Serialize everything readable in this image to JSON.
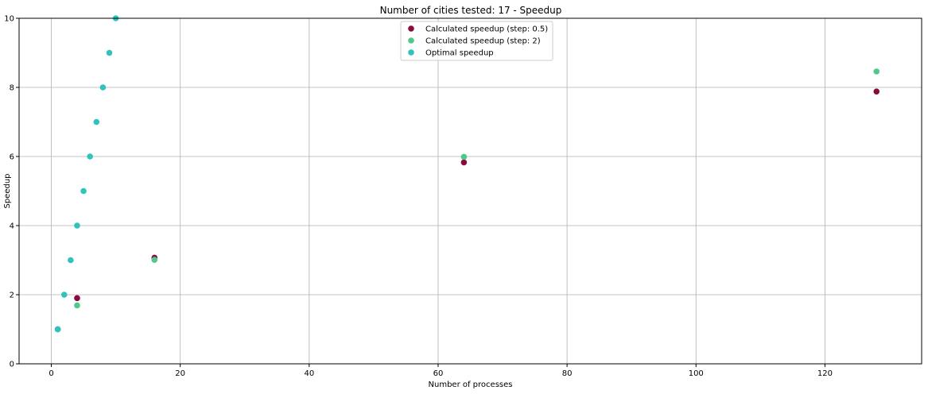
{
  "chart_data": {
    "type": "scatter",
    "title": "Number of cities tested: 17 - Speedup",
    "xlabel": "Number of processes",
    "ylabel": "Speedup",
    "xlim": [
      -5,
      135
    ],
    "ylim": [
      0,
      10
    ],
    "xticks": [
      0,
      20,
      40,
      60,
      80,
      100,
      120
    ],
    "yticks": [
      0,
      2,
      4,
      6,
      8,
      10
    ],
    "grid": true,
    "legend_position": "top-center",
    "series": [
      {
        "name": "Calculated speedup (step: 0.5)",
        "color": "#8b0a3e",
        "x": [
          1,
          4,
          16,
          64,
          128
        ],
        "y": [
          1.0,
          1.9,
          3.07,
          5.83,
          7.88
        ]
      },
      {
        "name": "Calculated speedup (step: 2)",
        "color": "#4fc98a",
        "x": [
          1,
          4,
          16,
          64,
          128
        ],
        "y": [
          1.0,
          1.69,
          3.01,
          5.99,
          8.46
        ]
      },
      {
        "name": "Optimal speedup",
        "color": "#2ec4bc",
        "x": [
          1,
          2,
          3,
          4,
          5,
          6,
          7,
          8,
          9,
          10
        ],
        "y": [
          1,
          2,
          3,
          4,
          5,
          6,
          7,
          8,
          9,
          10
        ]
      }
    ]
  }
}
